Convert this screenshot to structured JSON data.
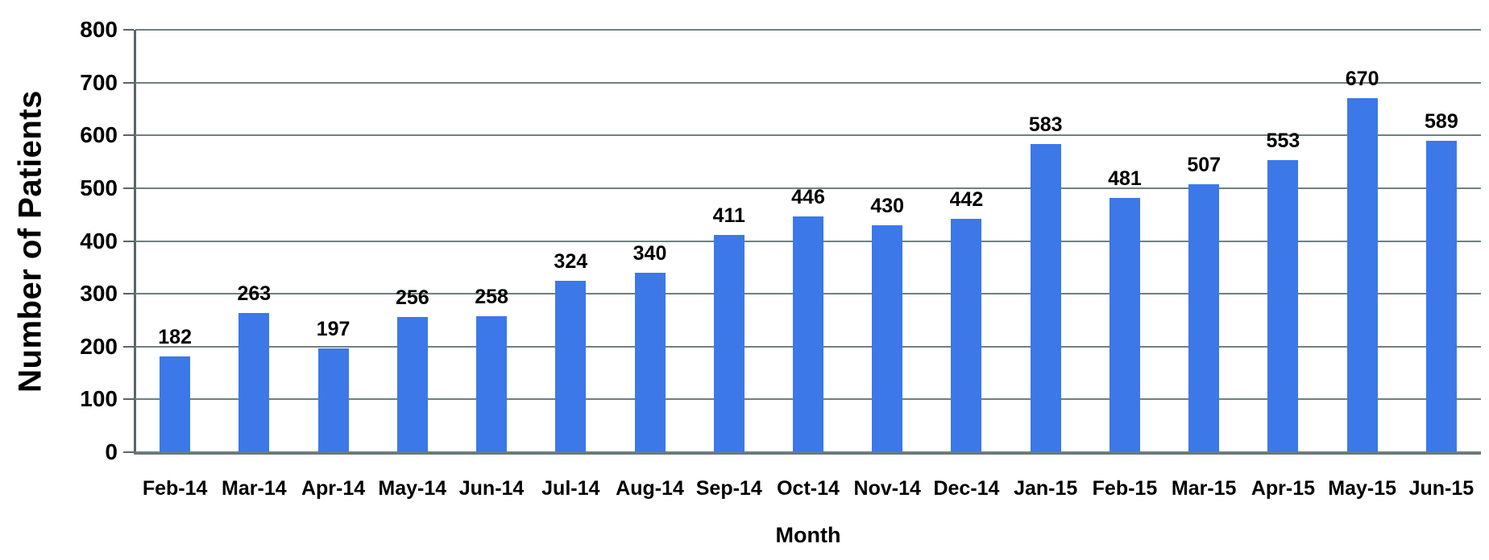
{
  "chart_data": {
    "type": "bar",
    "title": "",
    "xlabel": "Month",
    "ylabel": "Number of Patients",
    "categories": [
      "Feb-14",
      "Mar-14",
      "Apr-14",
      "May-14",
      "Jun-14",
      "Jul-14",
      "Aug-14",
      "Sep-14",
      "Oct-14",
      "Nov-14",
      "Dec-14",
      "Jan-15",
      "Feb-15",
      "Mar-15",
      "Apr-15",
      "May-15",
      "Jun-15"
    ],
    "values": [
      182,
      263,
      197,
      256,
      258,
      324,
      340,
      411,
      446,
      430,
      442,
      583,
      481,
      507,
      553,
      670,
      589
    ],
    "ylim": [
      0,
      800
    ],
    "ytick_interval": 100,
    "grid": true,
    "legend": "none",
    "colors": {
      "bar": "#3c78e8",
      "gridline": "#6f8080",
      "axis": "#5c6468",
      "text": "#000000",
      "background": "#ffffff"
    }
  }
}
